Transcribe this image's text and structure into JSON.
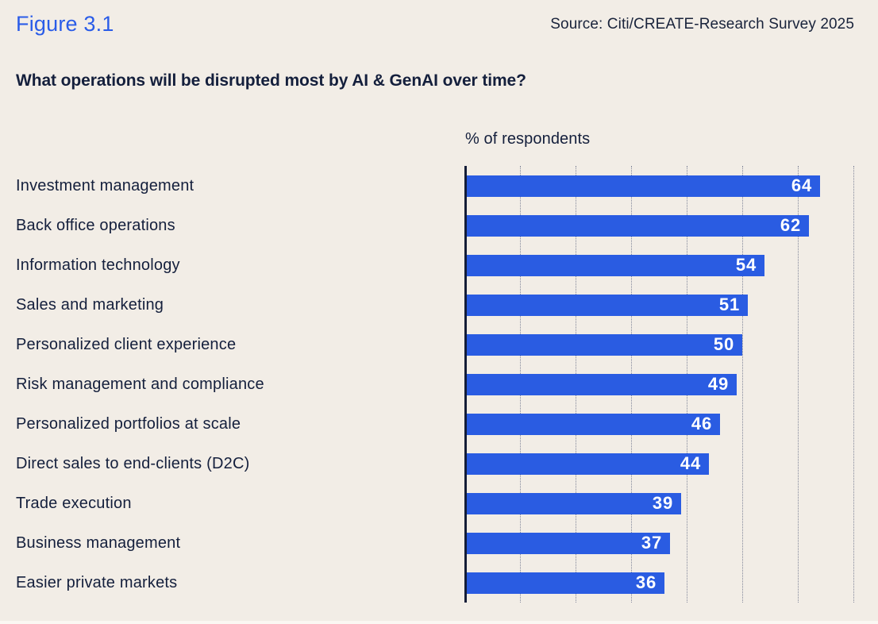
{
  "header": {
    "figure_label": "Figure 3.1",
    "source": "Source: Citi/CREATE-Research Survey 2025",
    "question": "What operations will be disrupted most by AI & GenAI over time?"
  },
  "chart_data": {
    "type": "bar",
    "orientation": "horizontal",
    "title": "What operations will be disrupted most by AI & GenAI over time?",
    "axis_title": "% of respondents",
    "categories": [
      "Investment management",
      "Back office operations",
      "Information technology",
      "Sales and marketing",
      "Personalized client experience",
      "Risk management and compliance",
      "Personalized portfolios at scale",
      "Direct sales to end-clients (D2C)",
      "Trade execution",
      "Business management",
      "Easier private markets"
    ],
    "values": [
      64,
      62,
      54,
      51,
      50,
      49,
      46,
      44,
      39,
      37,
      36
    ],
    "xlim": [
      0,
      70
    ],
    "gridline_interval": 10,
    "grid": "dotted-vertical",
    "legend": "none",
    "value_labels": "inside-bar-end"
  },
  "colors": {
    "background": "#F2EDE6",
    "bar_blue": "#2A5CE2",
    "figure_label_blue": "#2A5CE8",
    "text_navy": "#141F3C",
    "axis_navy": "#141D38",
    "gridline_gray": "#82879A",
    "value_label_white": "#FFFFFF"
  }
}
